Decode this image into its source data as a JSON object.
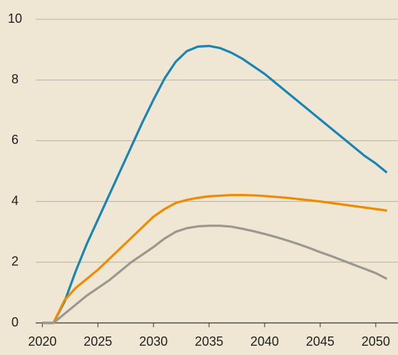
{
  "chart_data": {
    "type": "line",
    "x": [
      2020,
      2021,
      2022,
      2023,
      2024,
      2025,
      2026,
      2027,
      2028,
      2029,
      2030,
      2031,
      2032,
      2033,
      2034,
      2035,
      2036,
      2037,
      2038,
      2039,
      2040,
      2041,
      2042,
      2043,
      2044,
      2045,
      2046,
      2047,
      2048,
      2049,
      2050,
      2051
    ],
    "series": [
      {
        "color": "#1a85b5",
        "values": [
          0,
          0,
          0.7,
          1.7,
          2.6,
          3.4,
          4.2,
          5.0,
          5.8,
          6.6,
          7.35,
          8.05,
          8.6,
          8.95,
          9.1,
          9.12,
          9.05,
          8.9,
          8.7,
          8.45,
          8.2,
          7.9,
          7.6,
          7.3,
          7.0,
          6.7,
          6.4,
          6.1,
          5.8,
          5.5,
          5.25,
          4.95
        ]
      },
      {
        "color": "#f08a00",
        "values": [
          0,
          0,
          0.75,
          1.15,
          1.45,
          1.75,
          2.1,
          2.45,
          2.8,
          3.15,
          3.5,
          3.75,
          3.95,
          4.05,
          4.12,
          4.17,
          4.19,
          4.21,
          4.21,
          4.2,
          4.18,
          4.15,
          4.12,
          4.08,
          4.04,
          4.0,
          3.95,
          3.9,
          3.85,
          3.8,
          3.75,
          3.7
        ]
      },
      {
        "color": "#9a9890",
        "values": [
          0,
          0,
          0.3,
          0.6,
          0.9,
          1.15,
          1.4,
          1.7,
          2.0,
          2.25,
          2.5,
          2.78,
          3.0,
          3.12,
          3.18,
          3.2,
          3.2,
          3.17,
          3.1,
          3.02,
          2.93,
          2.83,
          2.72,
          2.6,
          2.47,
          2.33,
          2.2,
          2.06,
          1.92,
          1.78,
          1.64,
          1.45
        ]
      }
    ],
    "xlim": [
      2019.4,
      2052
    ],
    "xticks": [
      2020,
      2025,
      2030,
      2035,
      2040,
      2045,
      2050
    ],
    "ylim": [
      0,
      10
    ],
    "yticks": [
      0,
      2,
      4,
      6,
      8,
      10
    ],
    "grid": true
  }
}
